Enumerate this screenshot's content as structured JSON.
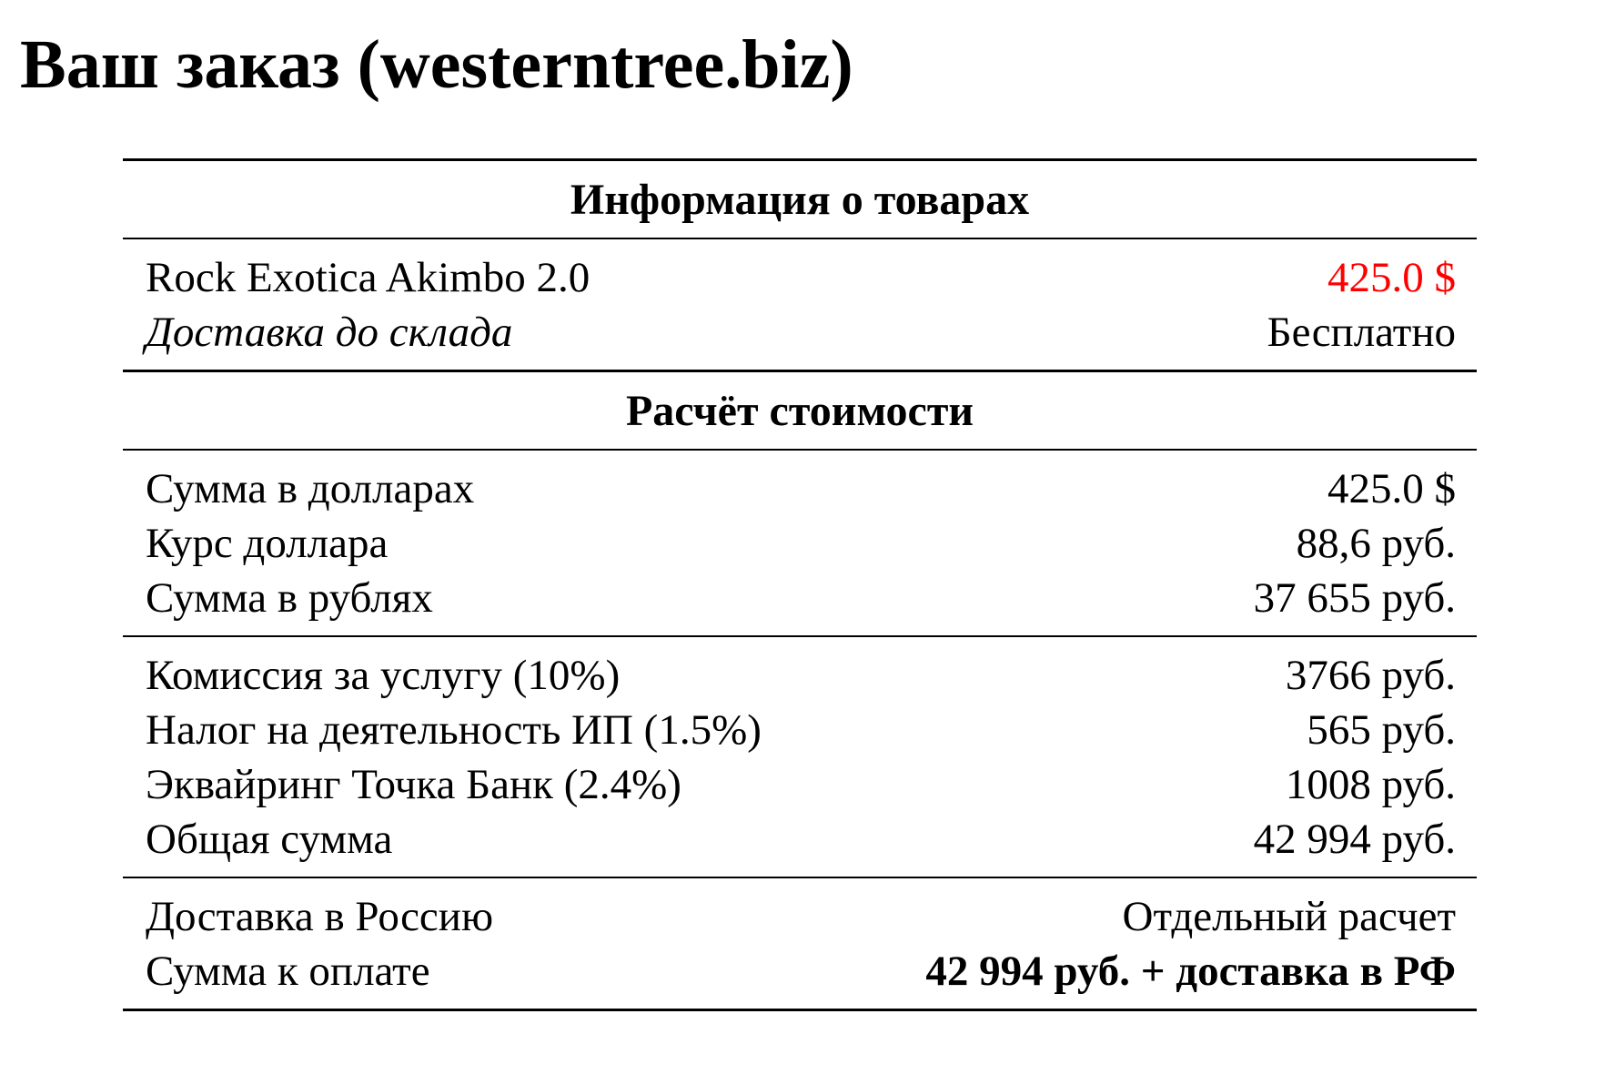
{
  "title": "Ваш заказ (westerntree.biz)",
  "sections": {
    "goods_header": "Информация о товарах",
    "goods": [
      {
        "label": "Rock Exotica Akimbo 2.0",
        "value": "425.0 $"
      },
      {
        "label": "Доставка до склада",
        "value": "Бесплатно"
      }
    ],
    "calc_header": "Расчёт стоимости",
    "calc": [
      {
        "label": "Сумма в долларах",
        "value": "425.0 $"
      },
      {
        "label": "Курс доллара",
        "value": "88,6 руб."
      },
      {
        "label": "Сумма в рублях",
        "value": "37 655 руб."
      }
    ],
    "fees": [
      {
        "label": "Комиссия за услугу (10%)",
        "value": "3766 руб."
      },
      {
        "label": "Налог на деятельность ИП (1.5%)",
        "value": "565 руб."
      },
      {
        "label": "Эквайринг Точка Банк (2.4%)",
        "value": "1008 руб."
      },
      {
        "label": "Общая сумма",
        "value": "42 994 руб."
      }
    ],
    "final": [
      {
        "label": "Доставка в Россию",
        "value": "Отдельный расчет"
      },
      {
        "label": "Сумма к оплате",
        "value": "42 994 руб. + доставка в РФ"
      }
    ]
  },
  "colors": {
    "price_highlight": "#ff0000"
  }
}
